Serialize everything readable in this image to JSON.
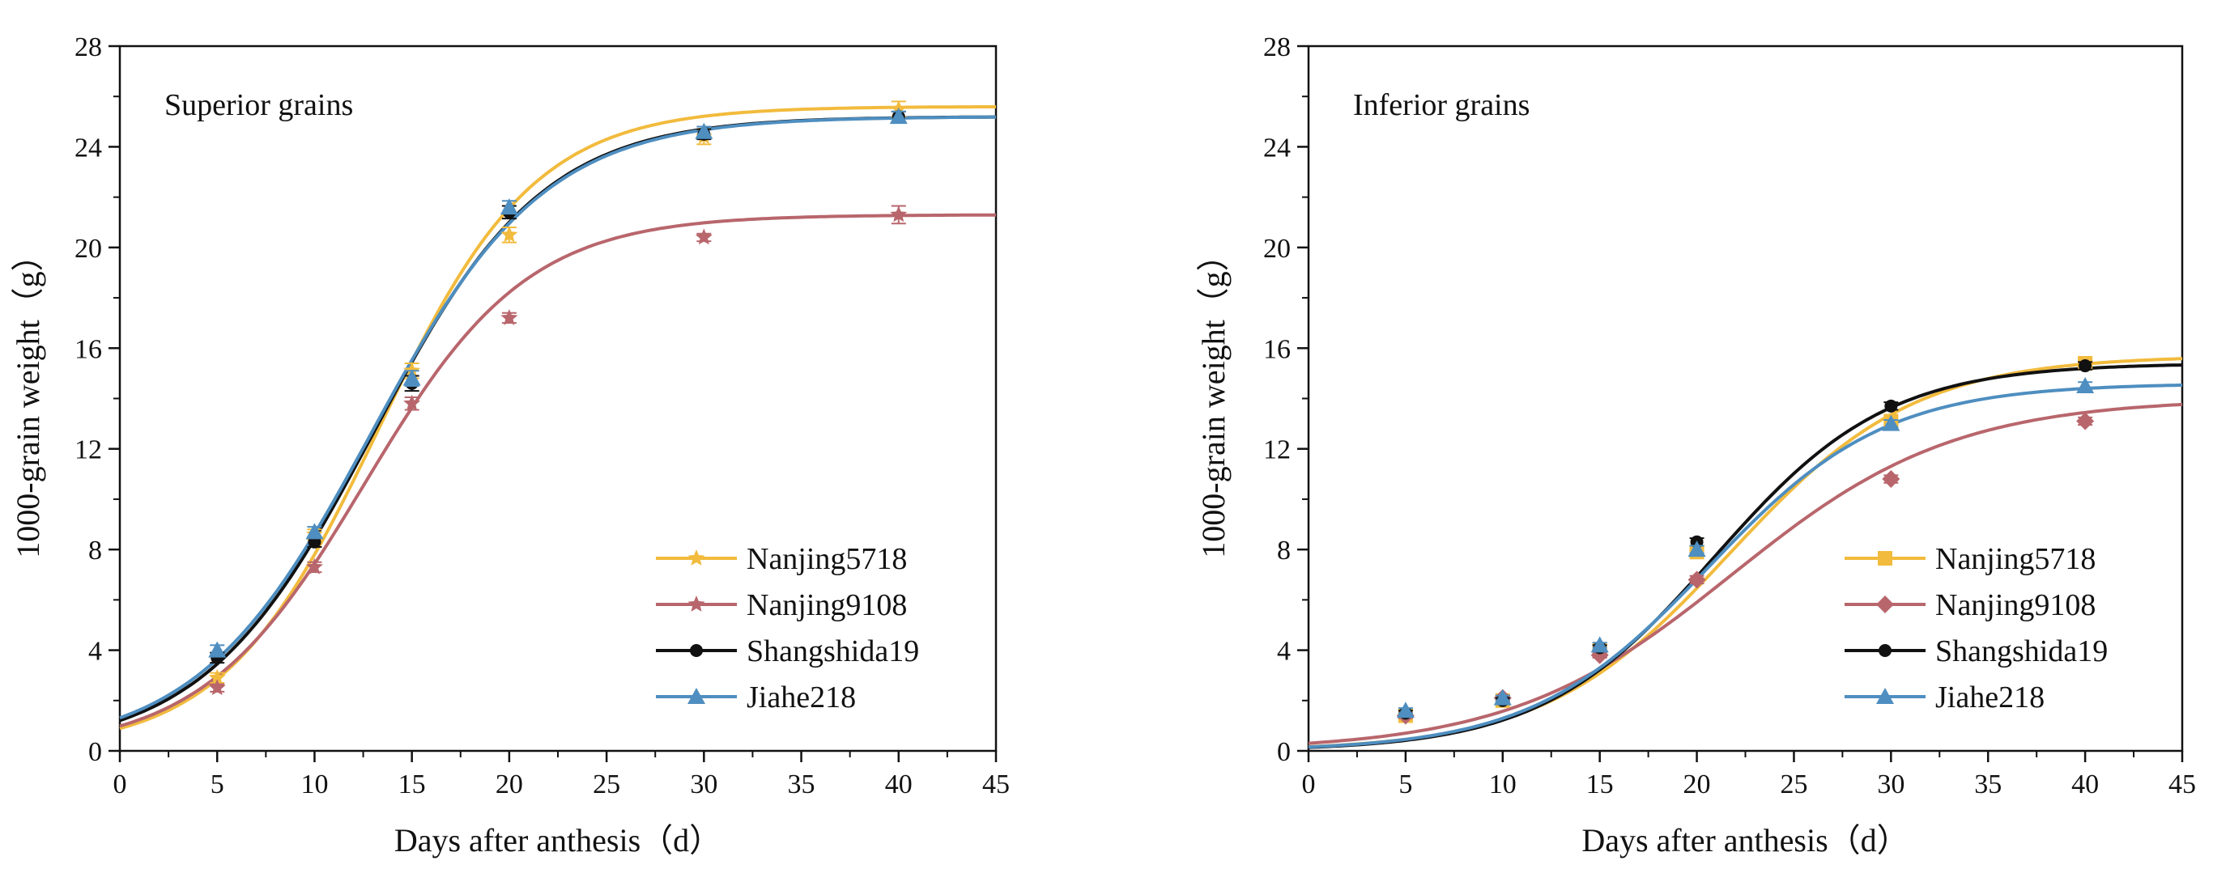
{
  "chart_data": [
    {
      "type": "line",
      "title": "Superior grains",
      "xlabel": "Days after anthesis（d）",
      "ylabel": "1000-grain weight（g）",
      "xlim": [
        0,
        45
      ],
      "ylim": [
        0,
        28
      ],
      "xticks": [
        0,
        5,
        10,
        15,
        20,
        25,
        30,
        35,
        40,
        45
      ],
      "yticks": [
        0,
        4,
        8,
        12,
        16,
        20,
        24,
        28
      ],
      "grid": false,
      "legend": "bottom-right",
      "series": [
        {
          "name": "Nanjing5718",
          "color": "#F2BB3D",
          "marker": "star",
          "x": [
            5,
            10,
            15,
            20,
            30,
            40
          ],
          "y": [
            2.9,
            8.6,
            15.1,
            20.5,
            24.4,
            25.5
          ],
          "err": [
            0.2,
            0.2,
            0.3,
            0.3,
            0.3,
            0.3
          ],
          "fit": {
            "A": 25.6,
            "k": 0.25,
            "t0": 13.3
          }
        },
        {
          "name": "Nanjing9108",
          "color": "#B8666C",
          "marker": "star",
          "x": [
            5,
            10,
            15,
            20,
            30,
            40
          ],
          "y": [
            2.5,
            7.3,
            13.8,
            17.2,
            20.4,
            21.3
          ],
          "err": [
            0.15,
            0.2,
            0.25,
            0.2,
            0.15,
            0.35
          ],
          "fit": {
            "A": 21.3,
            "k": 0.24,
            "t0": 12.6
          }
        },
        {
          "name": "Shangshida19",
          "color": "#111111",
          "marker": "dot",
          "x": [
            5,
            10,
            15,
            20,
            30,
            40
          ],
          "y": [
            3.7,
            8.3,
            14.6,
            21.4,
            24.5,
            25.2
          ],
          "err": [
            0.2,
            0.2,
            0.3,
            0.25,
            0.2,
            0.2
          ],
          "fit": {
            "A": 25.2,
            "k": 0.23,
            "t0": 13.0
          }
        },
        {
          "name": "Jiahe218",
          "color": "#4E8EC0",
          "marker": "triangle",
          "x": [
            5,
            10,
            15,
            20,
            30,
            40
          ],
          "y": [
            4.0,
            8.7,
            14.8,
            21.6,
            24.6,
            25.2
          ],
          "err": [
            0.2,
            0.2,
            0.3,
            0.25,
            0.2,
            0.2
          ],
          "fit": {
            "A": 25.2,
            "k": 0.225,
            "t0": 12.9
          }
        }
      ]
    },
    {
      "type": "line",
      "title": "Inferior grains",
      "xlabel": "Days after anthesis（d）",
      "ylabel": "1000-grain weight（g）",
      "xlim": [
        0,
        45
      ],
      "ylim": [
        0,
        28
      ],
      "xticks": [
        0,
        5,
        10,
        15,
        20,
        25,
        30,
        35,
        40,
        45
      ],
      "yticks": [
        0,
        4,
        8,
        12,
        16,
        20,
        24,
        28
      ],
      "grid": false,
      "legend": "bottom-right",
      "series": [
        {
          "name": "Nanjing5718",
          "color": "#F2BB3D",
          "marker": "square",
          "x": [
            5,
            10,
            15,
            20,
            30,
            40
          ],
          "y": [
            1.4,
            2.0,
            4.0,
            7.9,
            13.1,
            15.4
          ],
          "err": [
            0.1,
            0.1,
            0.1,
            0.15,
            0.15,
            0.15
          ],
          "fit": {
            "A": 15.7,
            "k": 0.21,
            "t0": 21.7
          }
        },
        {
          "name": "Nanjing9108",
          "color": "#B8666C",
          "marker": "diamond",
          "x": [
            5,
            10,
            15,
            20,
            30,
            40
          ],
          "y": [
            1.4,
            2.1,
            3.8,
            6.8,
            10.8,
            13.1
          ],
          "err": [
            0.1,
            0.1,
            0.1,
            0.15,
            0.15,
            0.15
          ],
          "fit": {
            "A": 14.0,
            "k": 0.175,
            "t0": 21.8
          }
        },
        {
          "name": "Shangshida19",
          "color": "#111111",
          "marker": "dot",
          "x": [
            5,
            10,
            15,
            20,
            30,
            40
          ],
          "y": [
            1.5,
            2.0,
            4.1,
            8.3,
            13.7,
            15.3
          ],
          "err": [
            0.1,
            0.1,
            0.1,
            0.15,
            0.15,
            0.15
          ],
          "fit": {
            "A": 15.4,
            "k": 0.225,
            "t0": 20.9
          }
        },
        {
          "name": "Jiahe218",
          "color": "#4E8EC0",
          "marker": "triangle",
          "x": [
            5,
            10,
            15,
            20,
            30,
            40
          ],
          "y": [
            1.6,
            2.1,
            4.2,
            8.0,
            13.0,
            14.5
          ],
          "err": [
            0.1,
            0.1,
            0.1,
            0.15,
            0.15,
            0.15
          ],
          "fit": {
            "A": 14.6,
            "k": 0.22,
            "t0": 20.6
          }
        }
      ]
    }
  ]
}
